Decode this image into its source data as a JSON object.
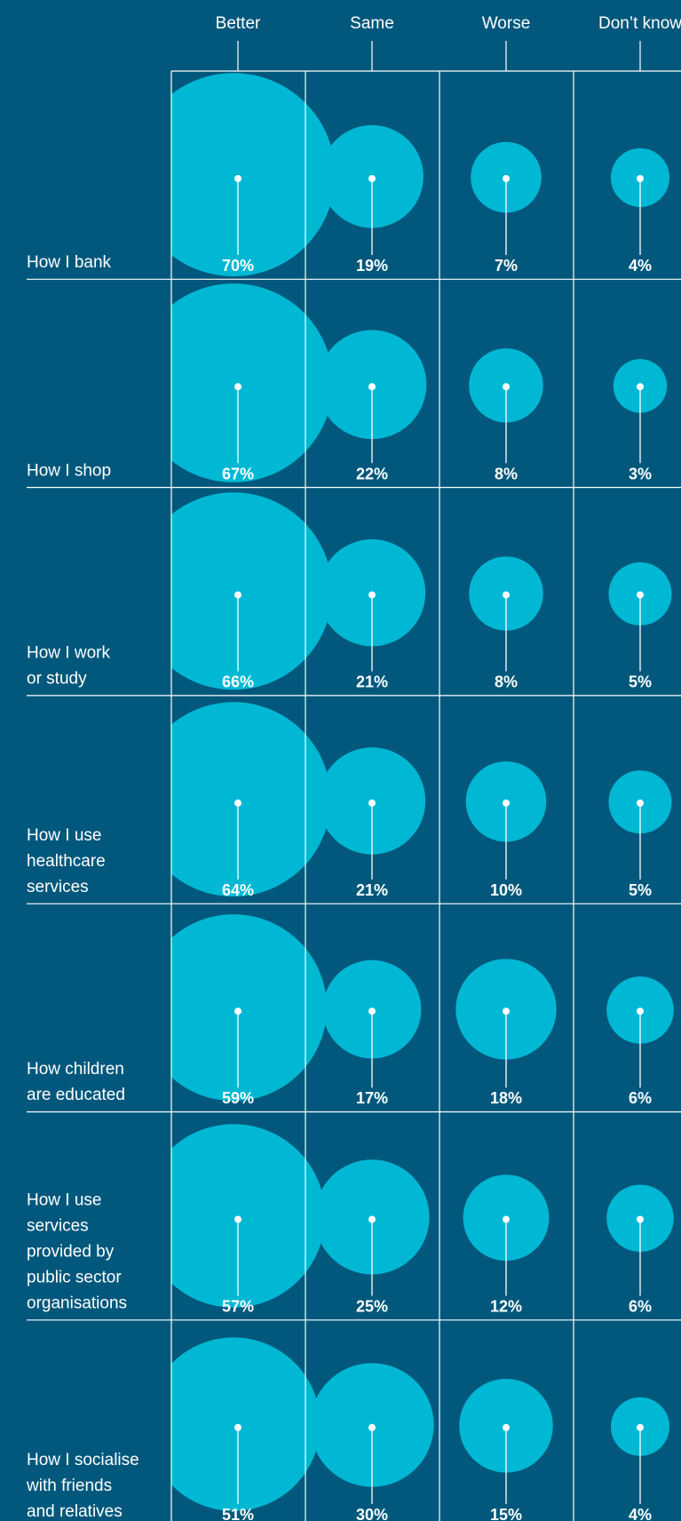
{
  "colors": {
    "background": "#02587c",
    "bubble": "#00b8d4",
    "line": "#ffffff"
  },
  "chart_data": {
    "type": "bubble-matrix",
    "columns": [
      "Better",
      "Same",
      "Worse",
      "Don’t know"
    ],
    "rows": [
      {
        "label": [
          "How I bank"
        ],
        "values": [
          70,
          19,
          7,
          4
        ]
      },
      {
        "label": [
          "How I shop"
        ],
        "values": [
          67,
          22,
          8,
          3
        ]
      },
      {
        "label": [
          "How I work",
          "or study"
        ],
        "values": [
          66,
          21,
          8,
          5
        ]
      },
      {
        "label": [
          "How I use",
          "healthcare",
          "services"
        ],
        "values": [
          64,
          21,
          10,
          5
        ]
      },
      {
        "label": [
          "How children",
          "are educated"
        ],
        "values": [
          59,
          17,
          18,
          6
        ]
      },
      {
        "label": [
          "How I use",
          "services",
          "provided by",
          "public sector",
          "organisations"
        ],
        "values": [
          57,
          25,
          12,
          6
        ]
      },
      {
        "label": [
          "How I socialise",
          "with friends",
          "and relatives"
        ],
        "values": [
          51,
          30,
          15,
          4
        ]
      }
    ],
    "value_suffix": "%"
  }
}
